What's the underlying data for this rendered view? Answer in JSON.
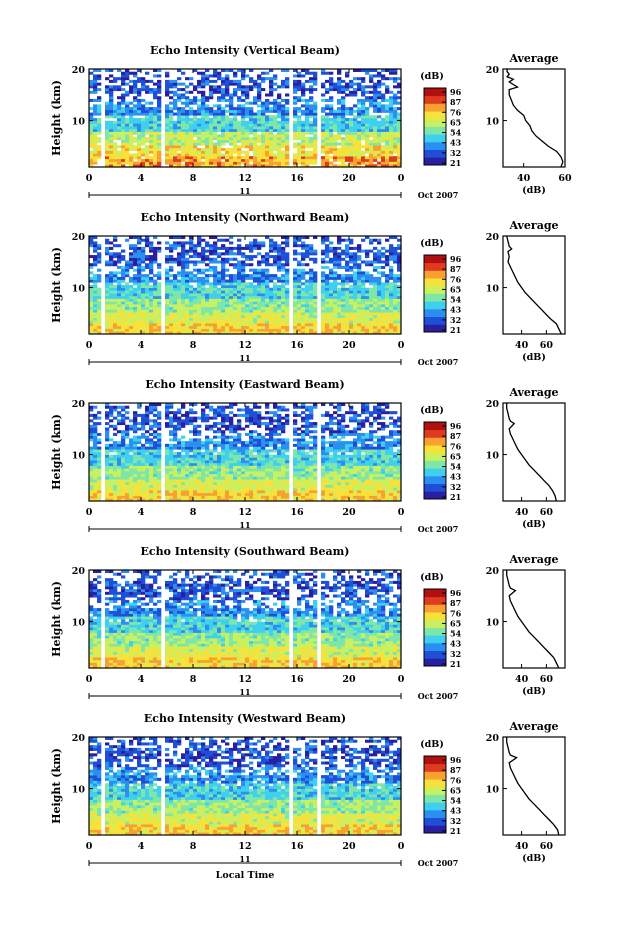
{
  "colorbar": {
    "unit_label": "(dB)",
    "tick_labels": [
      "96",
      "87",
      "76",
      "65",
      "54",
      "43",
      "32",
      "21"
    ],
    "colors": [
      "#2a1fa0",
      "#1f4fd6",
      "#2a8ff0",
      "#3fd0f0",
      "#7de6a8",
      "#c8f060",
      "#f8e23a",
      "#f8a030",
      "#e03a20",
      "#b01010"
    ]
  },
  "common": {
    "ylabel": "Height (km)",
    "avg_title": "Average",
    "avg_xlabel": "(dB)",
    "date_day": "11",
    "date_month_year": "Oct 2007",
    "x_tick_labels": [
      "0",
      "4",
      "8",
      "12",
      "16",
      "20",
      "0"
    ],
    "y_tick_labels": [
      "20",
      "10"
    ],
    "bottom_xlabel": "Local Time"
  },
  "chart_data": [
    {
      "type": "heatmap",
      "title": "Echo Intensity (Vertical Beam)",
      "xlabel": "",
      "ylabel": "Height (km)",
      "xlim": [
        0,
        24
      ],
      "ylim": [
        1,
        20
      ],
      "clim": [
        21,
        96
      ],
      "avg_profile": {
        "xlim": [
          30,
          60
        ],
        "x_tick_labels": [
          "40",
          "60"
        ],
        "height": [
          1.0,
          2.0,
          3.0,
          4.0,
          5.0,
          6.0,
          7.0,
          8.0,
          9.0,
          10.0,
          11.0,
          12.0,
          13.0,
          14.0,
          15.0,
          16.0,
          16.5,
          17.0,
          17.5,
          18.0,
          18.5,
          19.0,
          19.5,
          20.0
        ],
        "db": [
          58,
          59,
          58,
          56,
          52,
          49,
          46,
          44,
          43,
          41,
          40,
          37,
          35,
          34,
          33,
          33,
          37,
          35,
          33,
          35,
          32,
          33,
          32,
          32
        ]
      }
    },
    {
      "type": "heatmap",
      "title": "Echo Intensity (Northward Beam)",
      "xlabel": "",
      "ylabel": "Height (km)",
      "xlim": [
        0,
        24
      ],
      "ylim": [
        1,
        20
      ],
      "clim": [
        21,
        96
      ],
      "avg_profile": {
        "xlim": [
          25,
          75
        ],
        "x_tick_labels": [
          "40",
          "60"
        ],
        "height": [
          1.0,
          2.0,
          3.0,
          4.0,
          5.0,
          6.0,
          7.0,
          8.0,
          9.0,
          10.0,
          11.0,
          12.0,
          13.0,
          14.0,
          15.0,
          16.0,
          17.0,
          17.5,
          18.0,
          19.0,
          20.0
        ],
        "db": [
          72,
          70,
          68,
          63,
          59,
          55,
          51,
          47,
          43,
          40,
          37,
          35,
          33,
          31,
          29,
          30,
          29,
          32,
          30,
          29,
          28
        ]
      }
    },
    {
      "type": "heatmap",
      "title": "Echo Intensity (Eastward Beam)",
      "xlabel": "",
      "ylabel": "Height (km)",
      "xlim": [
        0,
        24
      ],
      "ylim": [
        1,
        20
      ],
      "clim": [
        21,
        96
      ],
      "avg_profile": {
        "xlim": [
          25,
          75
        ],
        "x_tick_labels": [
          "40",
          "60"
        ],
        "height": [
          1.0,
          2.0,
          3.0,
          4.0,
          5.0,
          6.0,
          7.0,
          8.0,
          9.0,
          10.0,
          11.0,
          12.0,
          13.0,
          14.0,
          15.0,
          16.0,
          16.5,
          17.0,
          18.0,
          19.0,
          20.0
        ],
        "db": [
          68,
          67,
          65,
          62,
          58,
          54,
          50,
          46,
          43,
          40,
          37,
          35,
          33,
          31,
          30,
          34,
          31,
          30,
          29,
          28,
          28
        ]
      }
    },
    {
      "type": "heatmap",
      "title": "Echo Intensity (Southward Beam)",
      "xlabel": "",
      "ylabel": "Height (km)",
      "xlim": [
        0,
        24
      ],
      "ylim": [
        1,
        20
      ],
      "clim": [
        21,
        96
      ],
      "avg_profile": {
        "xlim": [
          25,
          75
        ],
        "x_tick_labels": [
          "40",
          "60"
        ],
        "height": [
          1.0,
          2.0,
          3.0,
          4.0,
          5.0,
          6.0,
          7.0,
          8.0,
          9.0,
          10.0,
          11.0,
          12.0,
          13.0,
          14.0,
          15.0,
          16.0,
          16.5,
          17.0,
          18.0,
          19.0,
          20.0
        ],
        "db": [
          70,
          68,
          66,
          62,
          58,
          54,
          50,
          46,
          43,
          40,
          37,
          35,
          33,
          31,
          30,
          35,
          31,
          30,
          29,
          28,
          28
        ]
      }
    },
    {
      "type": "heatmap",
      "title": "Echo Intensity (Westward Beam)",
      "xlabel": "Local Time",
      "ylabel": "Height (km)",
      "xlim": [
        0,
        24
      ],
      "ylim": [
        1,
        20
      ],
      "clim": [
        21,
        96
      ],
      "avg_profile": {
        "xlim": [
          25,
          75
        ],
        "x_tick_labels": [
          "40",
          "60"
        ],
        "height": [
          1.0,
          2.0,
          3.0,
          4.0,
          5.0,
          6.0,
          7.0,
          8.0,
          9.0,
          10.0,
          11.0,
          12.0,
          13.0,
          14.0,
          15.0,
          16.0,
          16.5,
          17.0,
          18.0,
          19.0,
          20.0
        ],
        "db": [
          70,
          69,
          66,
          62,
          58,
          54,
          50,
          46,
          43,
          40,
          37,
          35,
          33,
          31,
          30,
          36,
          31,
          30,
          29,
          28,
          28
        ]
      }
    }
  ]
}
